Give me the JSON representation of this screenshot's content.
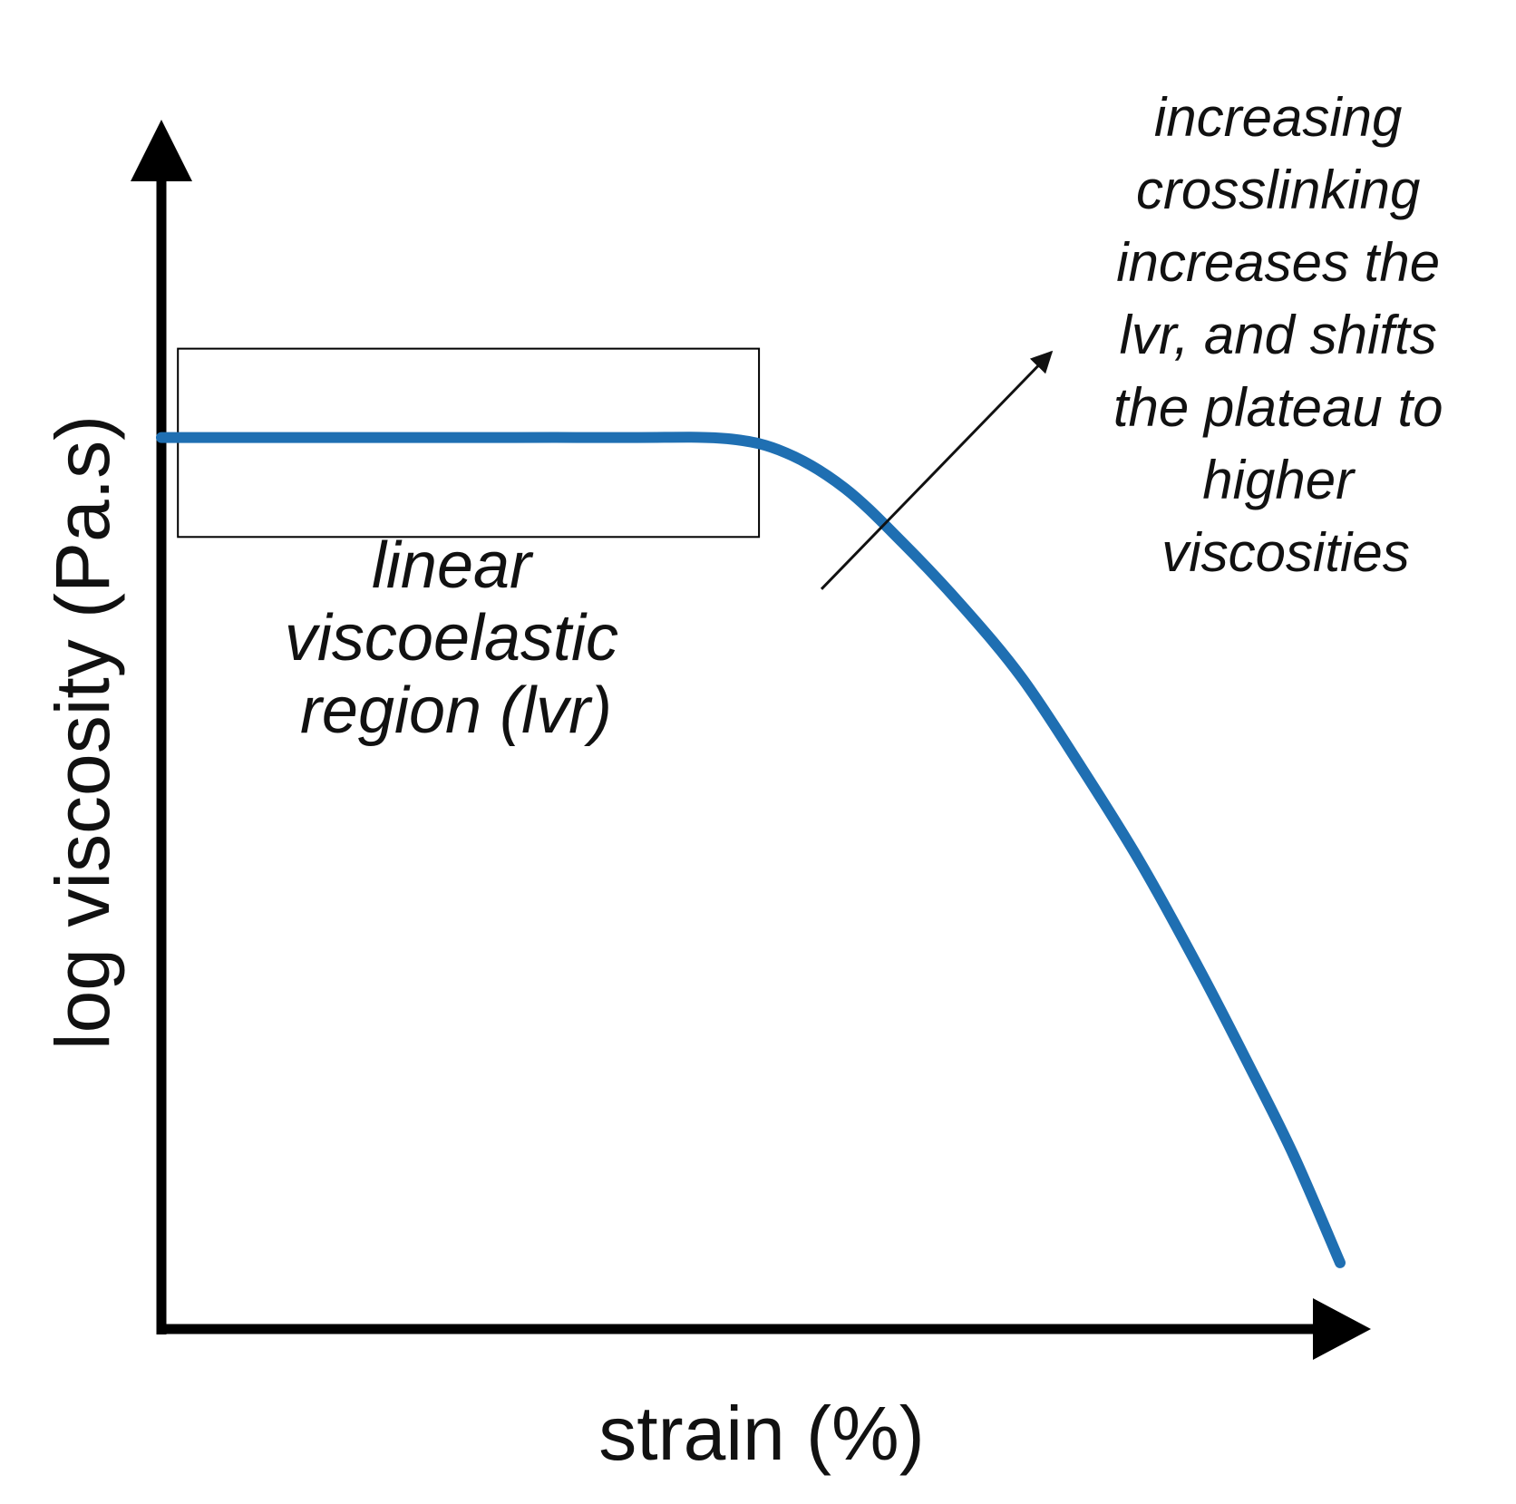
{
  "chart_data": {
    "type": "line",
    "title": "",
    "xlabel": "strain (%)",
    "ylabel": "log viscosity (Pa.s)",
    "xlim": [
      0,
      100
    ],
    "ylim": [
      0,
      100
    ],
    "grid": false,
    "ticks": "none",
    "series": [
      {
        "name": "viscosity",
        "color": "#1f6fb2",
        "x": [
          0,
          10,
          20,
          30,
          40,
          48,
          53,
          58,
          63,
          68,
          73,
          78,
          83,
          88,
          92,
          96,
          100
        ],
        "y": [
          75.3,
          75.3,
          75.3,
          75.3,
          75.3,
          75.2,
          74,
          71,
          66.3,
          61,
          55,
          47.5,
          39.5,
          30.5,
          22.8,
          14.8,
          5.6
        ]
      }
    ],
    "annotations": {
      "lvr_box": {
        "x_range": [
          1.4,
          50.7
        ],
        "y_range": [
          66.9,
          82.8
        ],
        "label_lines": [
          "linear",
          "viscoelastic",
          "region (lvr)"
        ]
      },
      "crosslink_arrow": {
        "from": [
          56,
          62.5
        ],
        "to": [
          75.5,
          82.5
        ]
      },
      "crosslink_note": {
        "lines": [
          "increasing",
          "crosslinking",
          "increases the",
          "lvr, and shifts",
          "the plateau to",
          "higher",
          "viscosities"
        ]
      }
    }
  }
}
